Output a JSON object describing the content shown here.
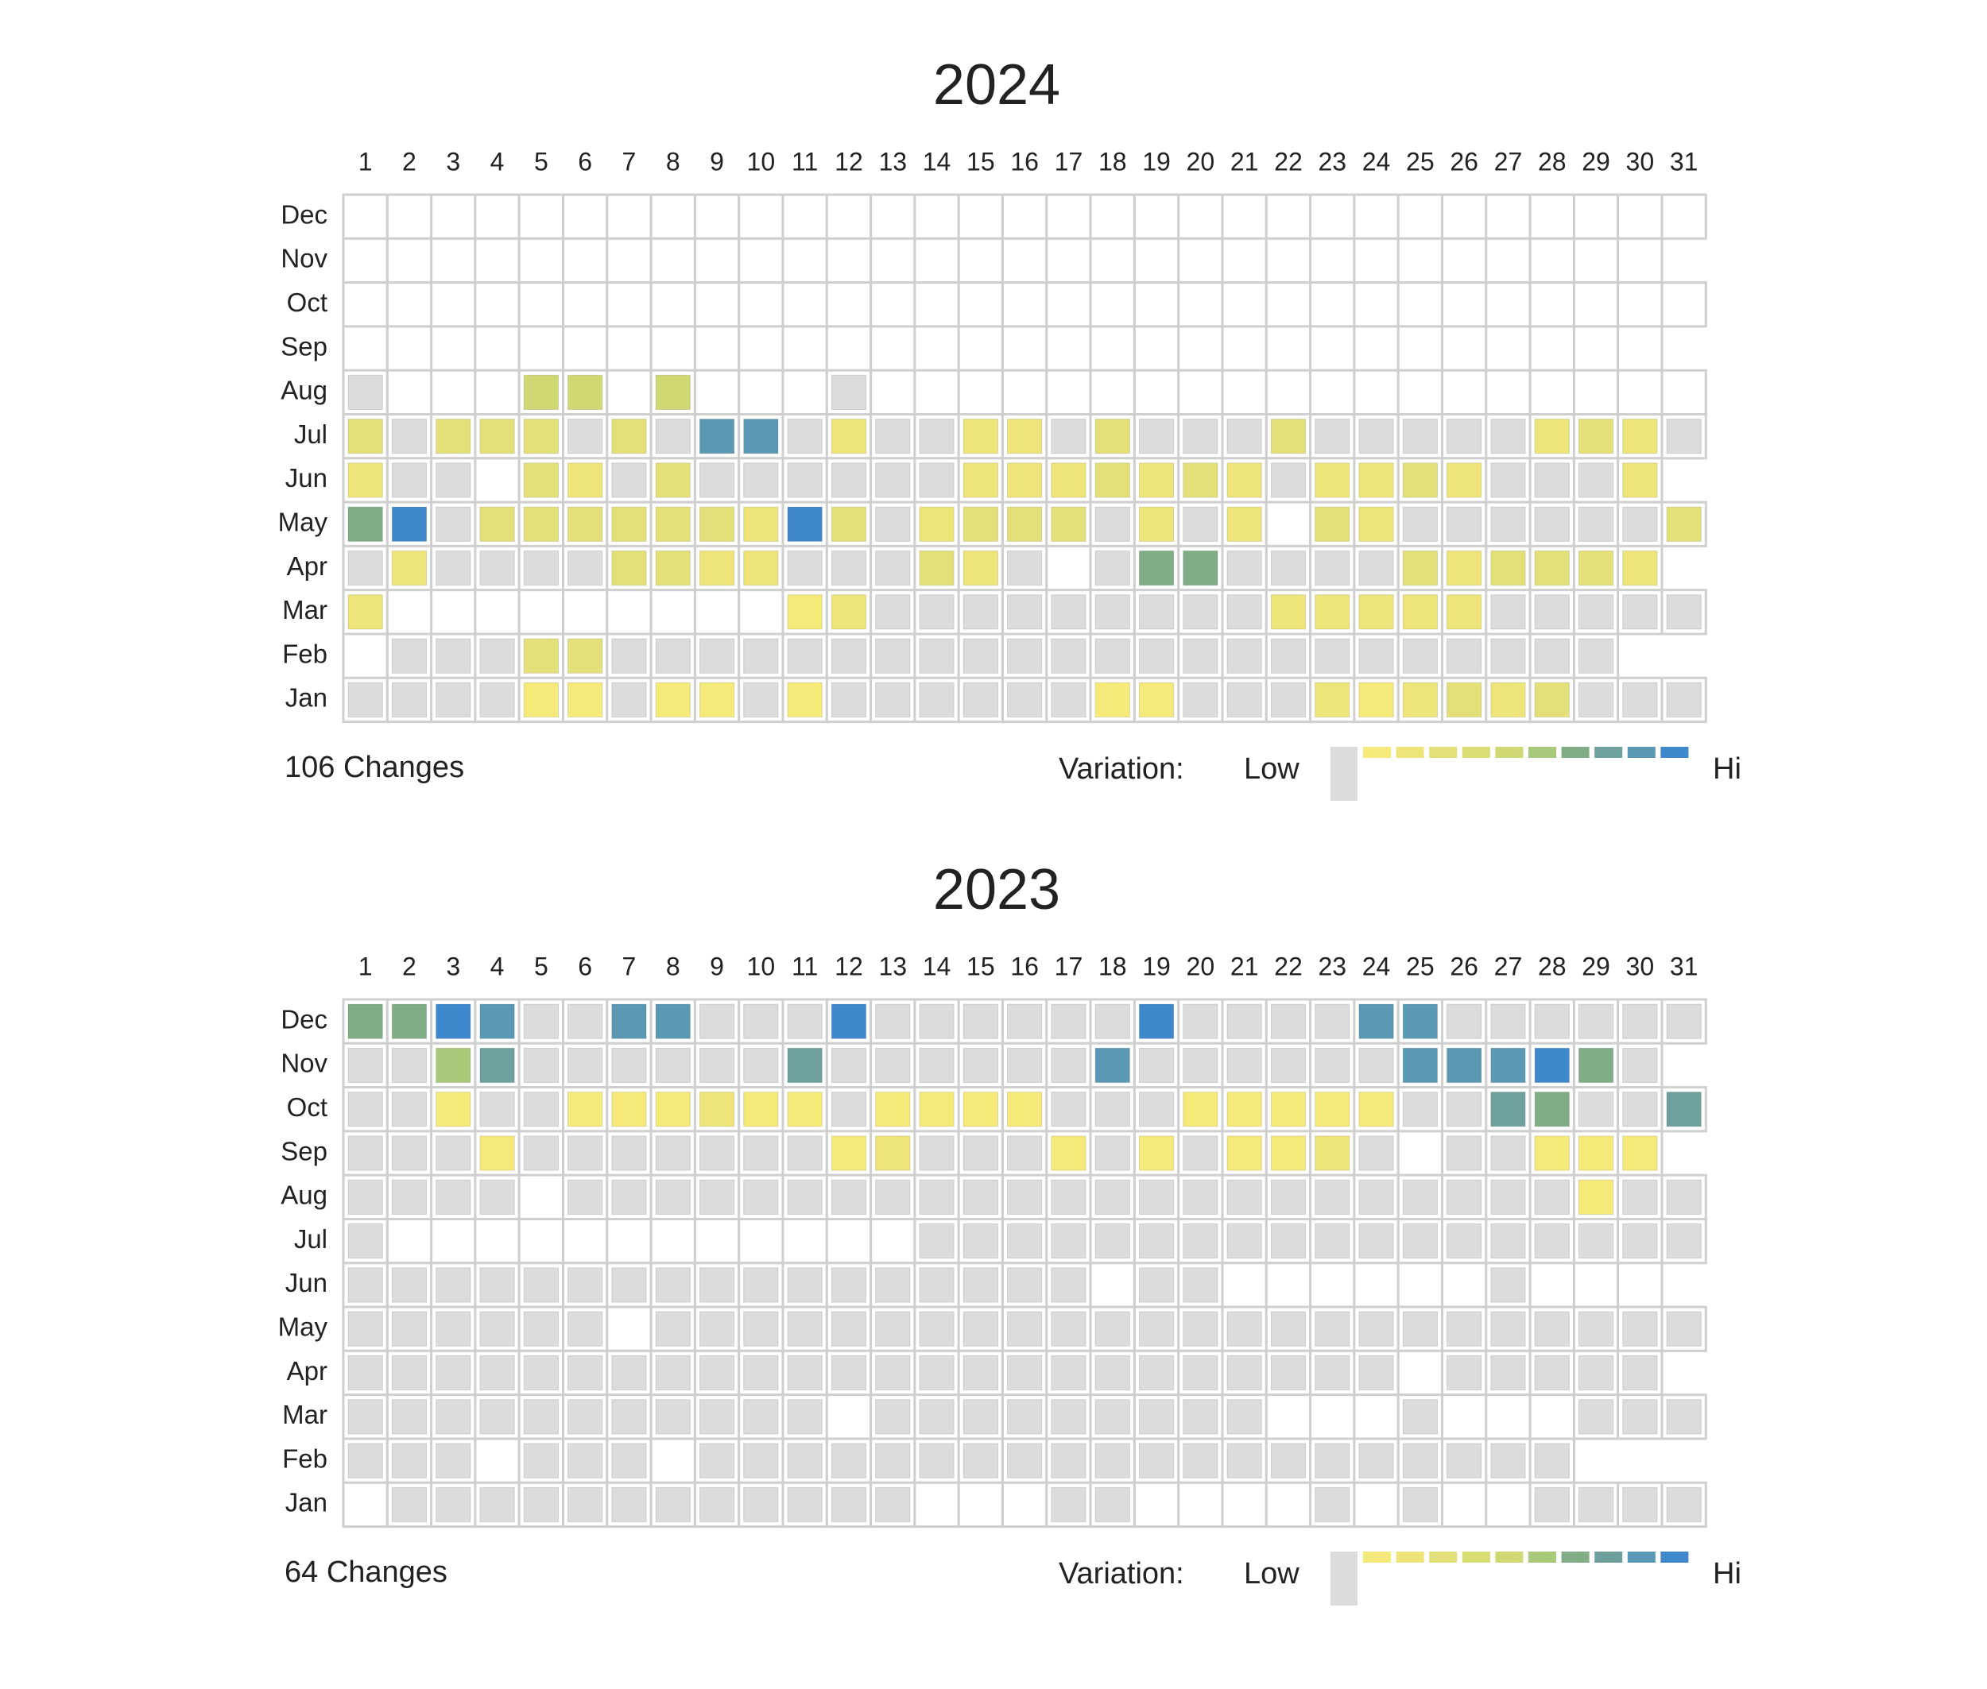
{
  "chart_data": [
    {
      "type": "heatmap",
      "title": "2024",
      "columns": [
        1,
        2,
        3,
        4,
        5,
        6,
        7,
        8,
        9,
        10,
        11,
        12,
        13,
        14,
        15,
        16,
        17,
        18,
        19,
        20,
        21,
        22,
        23,
        24,
        25,
        26,
        27,
        28,
        29,
        30,
        31
      ],
      "rows": [
        "Dec",
        "Nov",
        "Oct",
        "Sep",
        "Aug",
        "Jul",
        "Jun",
        "May",
        "Apr",
        "Mar",
        "Feb",
        "Jan"
      ],
      "values": [
        [
          null,
          null,
          null,
          null,
          null,
          null,
          null,
          null,
          null,
          null,
          null,
          null,
          null,
          null,
          null,
          null,
          null,
          null,
          null,
          null,
          null,
          null,
          null,
          null,
          null,
          null,
          null,
          null,
          null,
          null,
          null
        ],
        [
          null,
          null,
          null,
          null,
          null,
          null,
          null,
          null,
          null,
          null,
          null,
          null,
          null,
          null,
          null,
          null,
          null,
          null,
          null,
          null,
          null,
          null,
          null,
          null,
          null,
          null,
          null,
          null,
          null,
          null
        ],
        [
          null,
          null,
          null,
          null,
          null,
          null,
          null,
          null,
          null,
          null,
          null,
          null,
          null,
          null,
          null,
          null,
          null,
          null,
          null,
          null,
          null,
          null,
          null,
          null,
          null,
          null,
          null,
          null,
          null,
          null,
          null
        ],
        [
          null,
          null,
          null,
          null,
          null,
          null,
          null,
          null,
          null,
          null,
          null,
          null,
          null,
          null,
          null,
          null,
          null,
          null,
          null,
          null,
          null,
          null,
          null,
          null,
          null,
          null,
          null,
          null,
          null,
          null
        ],
        [
          0,
          null,
          null,
          null,
          5,
          5,
          null,
          5,
          null,
          null,
          null,
          0,
          null,
          null,
          null,
          null,
          null,
          null,
          null,
          null,
          null,
          null,
          null,
          null,
          null,
          null,
          null,
          null,
          null,
          null,
          null
        ],
        [
          3,
          0,
          3,
          3,
          3,
          0,
          3,
          0,
          9,
          9,
          0,
          2,
          0,
          0,
          2,
          2,
          0,
          3,
          0,
          0,
          0,
          3,
          0,
          0,
          0,
          0,
          0,
          2,
          3,
          2,
          0
        ],
        [
          2,
          0,
          0,
          null,
          3,
          2,
          0,
          3,
          0,
          0,
          0,
          0,
          0,
          0,
          2,
          2,
          2,
          3,
          2,
          3,
          2,
          0,
          2,
          2,
          3,
          2,
          0,
          0,
          0,
          2
        ],
        [
          7,
          10,
          0,
          3,
          3,
          3,
          3,
          3,
          3,
          2,
          10,
          3,
          0,
          2,
          3,
          3,
          3,
          0,
          2,
          0,
          2,
          null,
          3,
          2,
          0,
          0,
          0,
          0,
          0,
          0,
          3
        ],
        [
          0,
          2,
          0,
          0,
          0,
          0,
          3,
          3,
          2,
          2,
          0,
          0,
          0,
          3,
          2,
          0,
          null,
          0,
          7,
          7,
          0,
          0,
          0,
          0,
          3,
          2,
          3,
          3,
          3,
          2
        ],
        [
          2,
          null,
          null,
          null,
          null,
          null,
          null,
          null,
          null,
          null,
          1,
          2,
          0,
          0,
          0,
          0,
          0,
          0,
          0,
          0,
          0,
          2,
          2,
          2,
          2,
          2,
          0,
          0,
          0,
          0,
          0
        ],
        [
          null,
          0,
          0,
          0,
          3,
          3,
          0,
          0,
          0,
          0,
          0,
          0,
          0,
          0,
          0,
          0,
          0,
          0,
          0,
          0,
          0,
          0,
          0,
          0,
          0,
          0,
          0,
          0,
          0
        ],
        [
          0,
          0,
          0,
          0,
          1,
          1,
          0,
          1,
          1,
          0,
          1,
          0,
          0,
          0,
          0,
          0,
          0,
          1,
          1,
          0,
          0,
          0,
          2,
          1,
          2,
          3,
          2,
          3,
          0,
          0,
          0
        ]
      ],
      "summary": "106 Changes",
      "legend_label": "Variation:",
      "legend_low": "Low",
      "legend_high": "Hi",
      "colors": [
        "#dcdcdc",
        "#f5e97a",
        "#ede47a",
        "#e3e07a",
        "#d9dd74",
        "#cfd873",
        "#a8c97a",
        "#80ad86",
        "#6ea19d",
        "#5a98b4",
        "#3f88cc"
      ]
    },
    {
      "type": "heatmap",
      "title": "2023",
      "columns": [
        1,
        2,
        3,
        4,
        5,
        6,
        7,
        8,
        9,
        10,
        11,
        12,
        13,
        14,
        15,
        16,
        17,
        18,
        19,
        20,
        21,
        22,
        23,
        24,
        25,
        26,
        27,
        28,
        29,
        30,
        31
      ],
      "rows": [
        "Dec",
        "Nov",
        "Oct",
        "Sep",
        "Aug",
        "Jul",
        "Jun",
        "May",
        "Apr",
        "Mar",
        "Feb",
        "Jan"
      ],
      "values": [
        [
          7,
          7,
          10,
          9,
          0,
          0,
          9,
          9,
          0,
          0,
          0,
          10,
          0,
          0,
          0,
          0,
          0,
          0,
          10,
          0,
          0,
          0,
          0,
          9,
          9,
          0,
          0,
          0,
          0,
          0,
          0
        ],
        [
          0,
          0,
          6,
          8,
          0,
          0,
          0,
          0,
          0,
          0,
          8,
          0,
          0,
          0,
          0,
          0,
          0,
          9,
          0,
          0,
          0,
          0,
          0,
          0,
          9,
          9,
          9,
          10,
          7,
          0
        ],
        [
          0,
          0,
          1,
          0,
          0,
          1,
          1,
          1,
          2,
          1,
          1,
          0,
          1,
          1,
          1,
          1,
          0,
          0,
          0,
          1,
          1,
          1,
          1,
          1,
          0,
          0,
          8,
          7,
          0,
          0,
          8
        ],
        [
          0,
          0,
          0,
          1,
          0,
          0,
          0,
          0,
          0,
          0,
          0,
          1,
          2,
          0,
          0,
          0,
          1,
          0,
          1,
          0,
          1,
          1,
          2,
          0,
          null,
          0,
          0,
          1,
          1,
          1
        ],
        [
          0,
          0,
          0,
          0,
          null,
          0,
          0,
          0,
          0,
          0,
          0,
          0,
          0,
          0,
          0,
          0,
          0,
          0,
          0,
          0,
          0,
          0,
          0,
          0,
          0,
          0,
          0,
          0,
          1,
          0,
          0
        ],
        [
          0,
          null,
          null,
          null,
          null,
          null,
          null,
          null,
          null,
          null,
          null,
          null,
          null,
          0,
          0,
          0,
          0,
          0,
          0,
          0,
          0,
          0,
          0,
          0,
          0,
          0,
          0,
          0,
          0,
          0,
          0
        ],
        [
          0,
          0,
          0,
          0,
          0,
          0,
          0,
          0,
          0,
          0,
          0,
          0,
          0,
          0,
          0,
          0,
          0,
          null,
          0,
          0,
          null,
          null,
          null,
          null,
          null,
          null,
          0,
          null,
          null,
          null
        ],
        [
          0,
          0,
          0,
          0,
          0,
          0,
          null,
          0,
          0,
          0,
          0,
          0,
          0,
          0,
          0,
          0,
          0,
          0,
          0,
          0,
          0,
          0,
          0,
          0,
          0,
          0,
          0,
          0,
          0,
          0,
          0
        ],
        [
          0,
          0,
          0,
          0,
          0,
          0,
          0,
          0,
          0,
          0,
          0,
          0,
          0,
          0,
          0,
          0,
          0,
          0,
          0,
          0,
          0,
          0,
          0,
          0,
          null,
          0,
          0,
          0,
          0,
          0
        ],
        [
          0,
          0,
          0,
          0,
          0,
          0,
          0,
          0,
          0,
          0,
          0,
          null,
          0,
          0,
          0,
          0,
          0,
          0,
          0,
          0,
          0,
          null,
          null,
          null,
          0,
          null,
          null,
          null,
          0,
          0,
          0
        ],
        [
          0,
          0,
          0,
          null,
          0,
          0,
          0,
          null,
          0,
          0,
          0,
          0,
          0,
          0,
          0,
          0,
          0,
          0,
          0,
          0,
          0,
          0,
          0,
          0,
          0,
          0,
          0,
          0
        ],
        [
          null,
          0,
          0,
          0,
          0,
          0,
          0,
          0,
          0,
          0,
          0,
          0,
          0,
          null,
          null,
          null,
          0,
          0,
          null,
          null,
          null,
          null,
          0,
          null,
          0,
          null,
          null,
          0,
          0,
          0,
          0
        ]
      ],
      "summary": "64 Changes",
      "legend_label": "Variation:",
      "legend_low": "Low",
      "legend_high": "Hi",
      "colors": [
        "#dcdcdc",
        "#f5e97a",
        "#ede47a",
        "#e3e07a",
        "#d9dd74",
        "#cfd873",
        "#a8c97a",
        "#80ad86",
        "#6ea19d",
        "#5a98b4",
        "#3f88cc"
      ]
    }
  ]
}
